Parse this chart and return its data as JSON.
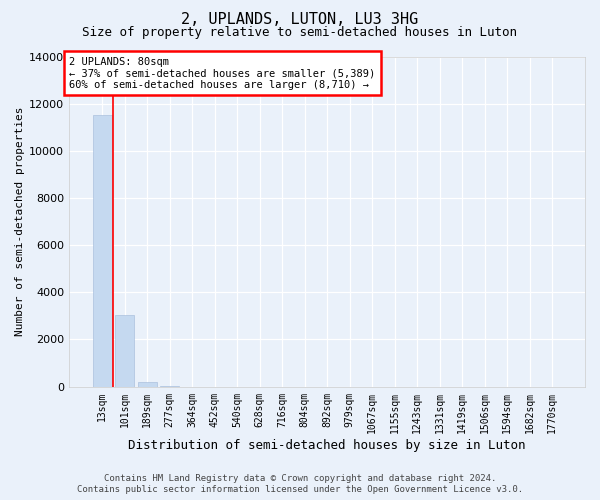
{
  "title": "2, UPLANDS, LUTON, LU3 3HG",
  "subtitle": "Size of property relative to semi-detached houses in Luton",
  "xlabel": "Distribution of semi-detached houses by size in Luton",
  "ylabel": "Number of semi-detached properties",
  "categories": [
    "13sqm",
    "101sqm",
    "189sqm",
    "277sqm",
    "364sqm",
    "452sqm",
    "540sqm",
    "628sqm",
    "716sqm",
    "804sqm",
    "892sqm",
    "979sqm",
    "1067sqm",
    "1155sqm",
    "1243sqm",
    "1331sqm",
    "1419sqm",
    "1506sqm",
    "1594sqm",
    "1682sqm",
    "1770sqm"
  ],
  "values": [
    11500,
    3050,
    175,
    15,
    0,
    0,
    0,
    0,
    0,
    0,
    0,
    0,
    0,
    0,
    0,
    0,
    0,
    0,
    0,
    0,
    0
  ],
  "bar_color": "#c5d9f0",
  "red_line_x": 0.5,
  "annotation_title": "2 UPLANDS: 80sqm",
  "annotation_line1": "← 37% of semi-detached houses are smaller (5,389)",
  "annotation_line2": "60% of semi-detached houses are larger (8,710) →",
  "ylim": [
    0,
    14000
  ],
  "yticks": [
    0,
    2000,
    4000,
    6000,
    8000,
    10000,
    12000,
    14000
  ],
  "footer_line1": "Contains HM Land Registry data © Crown copyright and database right 2024.",
  "footer_line2": "Contains public sector information licensed under the Open Government Licence v3.0.",
  "bg_color": "#eaf1fa",
  "grid_color": "white",
  "title_fontsize": 11,
  "subtitle_fontsize": 9,
  "ylabel_fontsize": 8,
  "xlabel_fontsize": 9,
  "tick_fontsize": 7,
  "footer_fontsize": 6.5,
  "ann_fontsize": 7.5
}
